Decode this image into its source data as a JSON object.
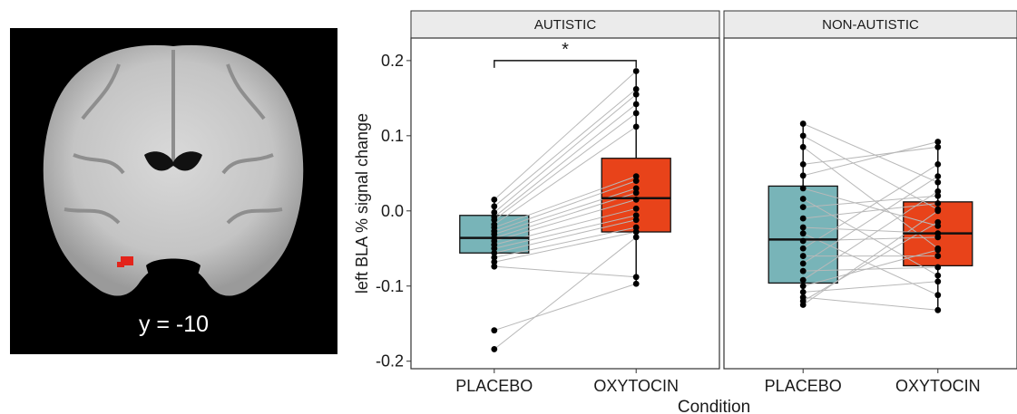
{
  "brain_image": {
    "slice_label": "y = -10",
    "roi_color": "#e3241b",
    "background": "#000000"
  },
  "chart_data": {
    "type": "box",
    "ylabel": "left BLA % signal change",
    "xlabel": "Condition",
    "ylim": [
      -0.21,
      0.23
    ],
    "yticks": [
      0.2,
      0.1,
      0.0,
      -0.1,
      -0.2
    ],
    "ytick_labels": [
      "0.2",
      "0.1",
      "0.0",
      "-0.1",
      "-0.2"
    ],
    "categories": [
      "PLACEBO",
      "OXYTOCIN"
    ],
    "colors": {
      "PLACEBO": "#78b4b8",
      "OXYTOCIN": "#e8431a"
    },
    "grid": false,
    "facets": [
      {
        "label": "AUTISTIC",
        "significance": "*",
        "boxes": [
          {
            "category": "PLACEBO",
            "q1": -0.056,
            "median": -0.036,
            "q3": -0.006,
            "whisker_low": -0.074,
            "whisker_high": 0.015
          },
          {
            "category": "OXYTOCIN",
            "q1": -0.028,
            "median": 0.017,
            "q3": 0.07,
            "whisker_low": -0.1,
            "whisker_high": 0.186
          }
        ],
        "pairs": [
          [
            0.015,
            0.186
          ],
          [
            0.006,
            0.162
          ],
          [
            -0.002,
            0.155
          ],
          [
            -0.008,
            0.142
          ],
          [
            -0.012,
            0.13
          ],
          [
            -0.018,
            0.112
          ],
          [
            -0.022,
            0.046
          ],
          [
            -0.027,
            0.04
          ],
          [
            -0.031,
            0.03
          ],
          [
            -0.036,
            0.024
          ],
          [
            -0.04,
            0.015
          ],
          [
            -0.045,
            0.003
          ],
          [
            -0.05,
            -0.006
          ],
          [
            -0.056,
            -0.012
          ],
          [
            -0.062,
            -0.022
          ],
          [
            -0.068,
            -0.028
          ],
          [
            -0.074,
            -0.088
          ],
          [
            -0.159,
            -0.097
          ],
          [
            -0.184,
            -0.035
          ]
        ]
      },
      {
        "label": "NON-AUTISTIC",
        "significance": "",
        "boxes": [
          {
            "category": "PLACEBO",
            "q1": -0.096,
            "median": -0.038,
            "q3": 0.033,
            "whisker_low": -0.125,
            "whisker_high": 0.116
          },
          {
            "category": "OXYTOCIN",
            "q1": -0.073,
            "median": -0.03,
            "q3": 0.012,
            "whisker_low": -0.132,
            "whisker_high": 0.092
          }
        ],
        "pairs": [
          [
            0.116,
            0.038
          ],
          [
            0.1,
            0.002
          ],
          [
            0.085,
            -0.05
          ],
          [
            0.062,
            0.085
          ],
          [
            0.047,
            0.092
          ],
          [
            0.03,
            -0.02
          ],
          [
            0.016,
            -0.086
          ],
          [
            0.005,
            0.02
          ],
          [
            -0.01,
            0.01
          ],
          [
            -0.022,
            -0.03
          ],
          [
            -0.03,
            -0.112
          ],
          [
            -0.04,
            -0.035
          ],
          [
            -0.05,
            0.062
          ],
          [
            -0.06,
            -0.06
          ],
          [
            -0.07,
            0.046
          ],
          [
            -0.08,
            -0.075
          ],
          [
            -0.092,
            0.026
          ],
          [
            -0.1,
            -0.052
          ],
          [
            -0.108,
            -0.094
          ],
          [
            -0.115,
            -0.132
          ],
          [
            -0.12,
            -0.015
          ],
          [
            -0.125,
            0.0
          ]
        ]
      }
    ]
  }
}
